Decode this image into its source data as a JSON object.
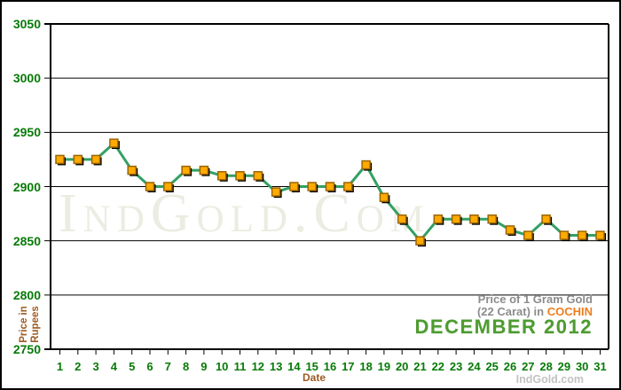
{
  "chart_data": {
    "type": "line",
    "x": [
      1,
      2,
      3,
      4,
      5,
      6,
      7,
      8,
      9,
      10,
      11,
      12,
      13,
      14,
      15,
      16,
      17,
      18,
      19,
      20,
      21,
      22,
      23,
      24,
      25,
      26,
      27,
      28,
      29,
      30,
      31
    ],
    "values": [
      2925,
      2925,
      2925,
      2940,
      2915,
      2900,
      2900,
      2915,
      2915,
      2910,
      2910,
      2910,
      2895,
      2900,
      2900,
      2900,
      2900,
      2920,
      2890,
      2870,
      2850,
      2870,
      2870,
      2870,
      2870,
      2860,
      2855,
      2870,
      2855,
      2855,
      2855
    ],
    "title": "Price of 1 Gram Gold (22 Carat) in COCHIN - December 2012",
    "xlabel": "Date",
    "ylabel": "Price in Rupees",
    "ylim": [
      2750,
      3050
    ],
    "yticks": [
      2750,
      2800,
      2850,
      2900,
      2950,
      3000,
      3050
    ],
    "grid": true,
    "legend_position": "none",
    "line_color": "#33a064",
    "marker_shape": "square",
    "marker_color": "#ffaa00",
    "marker_border_color": "#9a6500",
    "marker_shadow_color": "#000000"
  },
  "axis": {
    "xlabel": "Date",
    "ylabel_line1": "Price in",
    "ylabel_line2": "Rupees",
    "tick_label_color": "#067a06",
    "axis_title_color": "#9c5a24"
  },
  "title": {
    "line1": "Price of 1 Gram Gold",
    "line2_prefix": "(22 Carat) in ",
    "line2_highlight": "COCHIN",
    "line3": "DECEMBER 2012",
    "highlight_color": "#ef7d1e",
    "month_color": "#4e9b31",
    "gray_color": "#8c8c8c"
  },
  "watermark": {
    "text": "IndGold.Com"
  },
  "footer": {
    "site": "IndGold.com"
  }
}
